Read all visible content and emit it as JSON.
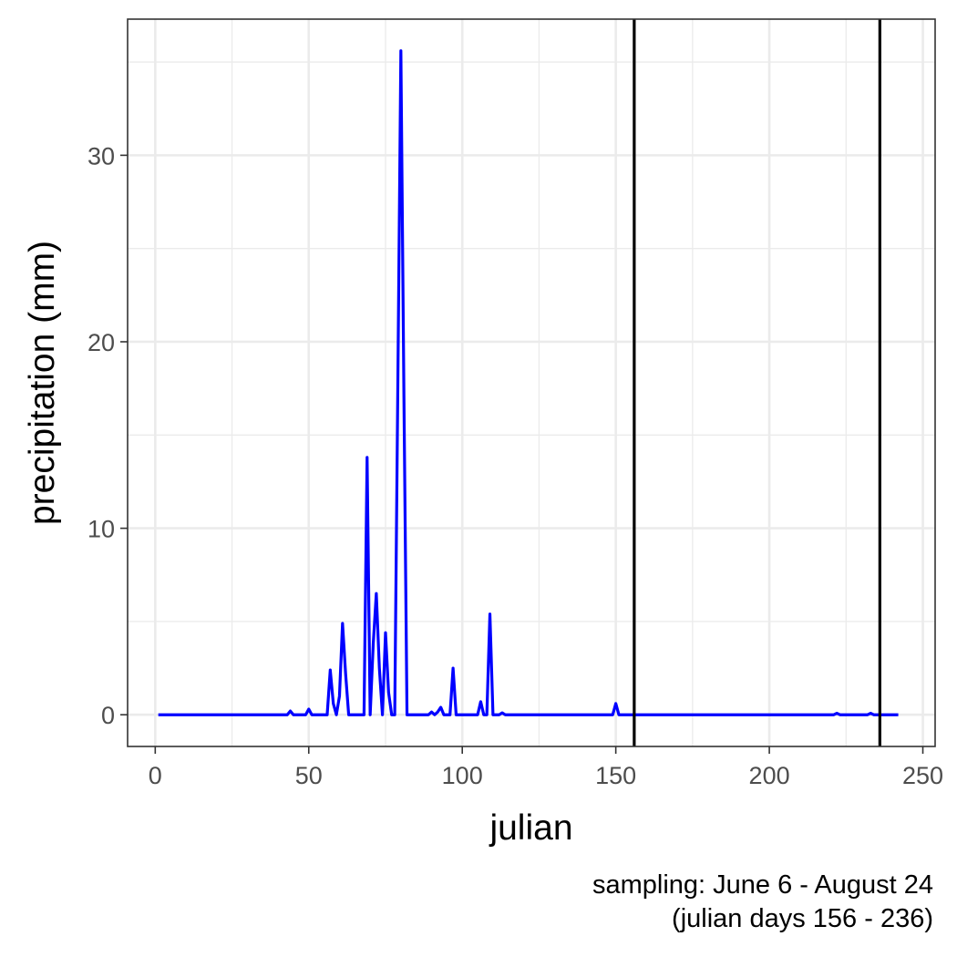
{
  "chart_data": {
    "type": "line",
    "xlabel": "julian",
    "ylabel": "precipitation (mm)",
    "caption_lines": [
      "sampling: June 6 - August 24",
      "(julian days 156 - 236)"
    ],
    "xlim": [
      -9,
      254
    ],
    "ylim": [
      -1.7,
      37.3
    ],
    "x_ticks": [
      0,
      50,
      100,
      150,
      200,
      250
    ],
    "x_tick_labels": [
      "0",
      "50",
      "100",
      "150",
      "200",
      "250"
    ],
    "y_ticks": [
      0,
      10,
      20,
      30
    ],
    "y_tick_labels": [
      "0",
      "10",
      "20",
      "30"
    ],
    "grid": true,
    "vlines": [
      156,
      236
    ],
    "series": [
      {
        "color": "#0000ff",
        "x": [
          1,
          43,
          44,
          45,
          49,
          50,
          51,
          56,
          57,
          58,
          59,
          60,
          61,
          62,
          63,
          68,
          69,
          70,
          71,
          72,
          73,
          74,
          75,
          76,
          77,
          78,
          79,
          80,
          81,
          82,
          89,
          90,
          91,
          92,
          93,
          94,
          96,
          97,
          98,
          105,
          106,
          107,
          108,
          109,
          110,
          112,
          113,
          114,
          149,
          150,
          151,
          221,
          222,
          223,
          232,
          233,
          234,
          242
        ],
        "y": [
          0,
          0,
          0.2,
          0,
          0,
          0.3,
          0,
          0,
          2.4,
          0.6,
          0,
          1.0,
          4.9,
          2.2,
          0,
          0,
          13.8,
          0,
          3.8,
          6.5,
          2.5,
          0,
          4.4,
          1.2,
          0,
          0,
          17.5,
          35.6,
          17.0,
          0,
          0,
          0.15,
          0,
          0.15,
          0.4,
          0,
          0,
          2.5,
          0,
          0,
          0.7,
          0,
          0,
          5.4,
          0,
          0,
          0.1,
          0,
          0,
          0.6,
          0,
          0,
          0.08,
          0,
          0,
          0.08,
          0,
          0
        ]
      }
    ]
  }
}
